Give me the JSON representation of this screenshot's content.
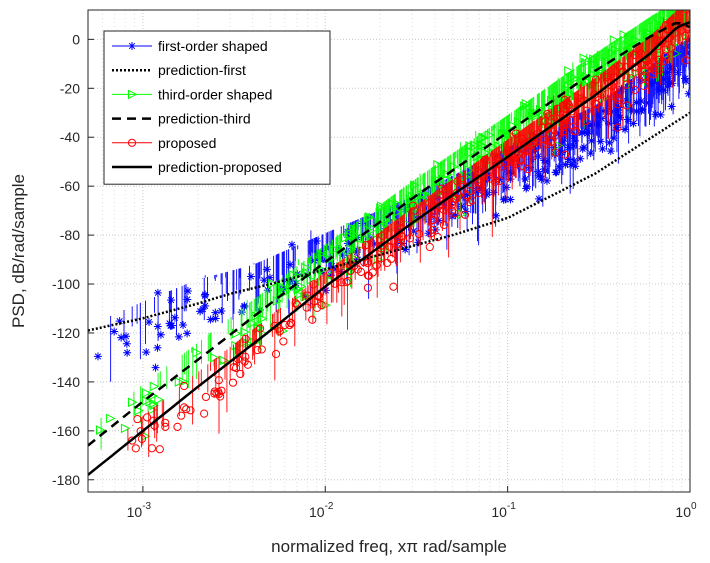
{
  "chart_data": {
    "type": "line",
    "xscale": "log",
    "xlim": [
      0.0005,
      1
    ],
    "ylim": [
      -185,
      12
    ],
    "xlabel": "normalized freq, xπ rad/sample",
    "ylabel": "PSD, dB/rad/sample",
    "grid": true,
    "minor_grid": true,
    "legend_location": "top-left",
    "xticks": [
      {
        "value": 0.001,
        "base": "10",
        "exp": "-3"
      },
      {
        "value": 0.01,
        "base": "10",
        "exp": "-2"
      },
      {
        "value": 0.1,
        "base": "10",
        "exp": "-1"
      },
      {
        "value": 1,
        "base": "10",
        "exp": "0"
      }
    ],
    "yticks": [
      0,
      -20,
      -40,
      -60,
      -80,
      -100,
      -120,
      -140,
      -160,
      -180
    ],
    "series": [
      {
        "name": "first-order shaped",
        "color": "#0000ff",
        "marker": "asterisk",
        "style": "stem",
        "x": [
          0.0005,
          0.001,
          0.002,
          0.004,
          0.01,
          0.03,
          0.1,
          0.3,
          0.6,
          0.8,
          1.0
        ],
        "y": [
          -128,
          -118,
          -109,
          -103,
          -90,
          -75,
          -55,
          -38,
          -22,
          -15,
          -10
        ],
        "spread": 12
      },
      {
        "name": "prediction-first",
        "color": "#000000",
        "style": "dotted",
        "x": [
          0.0005,
          0.001,
          0.002,
          0.003,
          0.005,
          0.01,
          0.02,
          0.05,
          0.1,
          0.3,
          1.0
        ],
        "y": [
          -119,
          -114,
          -108,
          -104,
          -100,
          -94,
          -88,
          -80,
          -73,
          -55,
          -30
        ]
      },
      {
        "name": "third-order shaped",
        "color": "#00ff00",
        "marker": "triangle-right",
        "style": "stem",
        "x": [
          0.0005,
          0.001,
          0.002,
          0.005,
          0.01,
          0.03,
          0.1,
          0.3,
          0.6,
          0.85,
          1.0
        ],
        "y": [
          -168,
          -150,
          -133,
          -110,
          -93,
          -67,
          -40,
          -15,
          0,
          7,
          5
        ],
        "spread": 10
      },
      {
        "name": "prediction-third",
        "color": "#000000",
        "style": "dashed",
        "x": [
          0.0005,
          0.001,
          0.002,
          0.005,
          0.01,
          0.03,
          0.1,
          0.3,
          0.6,
          0.85,
          1.0
        ],
        "y": [
          -166,
          -148,
          -131,
          -108,
          -91,
          -65,
          -38,
          -13,
          1,
          7,
          5
        ]
      },
      {
        "name": "proposed",
        "color": "#ff0000",
        "marker": "circle",
        "style": "stem",
        "x": [
          0.0005,
          0.001,
          0.002,
          0.005,
          0.01,
          0.03,
          0.1,
          0.3,
          0.6,
          0.85,
          1.0
        ],
        "y": [
          -182,
          -163,
          -145,
          -122,
          -104,
          -78,
          -50,
          -25,
          -8,
          3,
          5
        ],
        "spread": 10
      },
      {
        "name": "prediction-proposed",
        "color": "#000000",
        "style": "solid",
        "x": [
          0.0005,
          0.001,
          0.002,
          0.005,
          0.01,
          0.03,
          0.1,
          0.3,
          0.6,
          0.85,
          1.0
        ],
        "y": [
          -178,
          -160,
          -142,
          -119,
          -101,
          -75,
          -48,
          -23,
          -6,
          5,
          7
        ]
      }
    ]
  }
}
